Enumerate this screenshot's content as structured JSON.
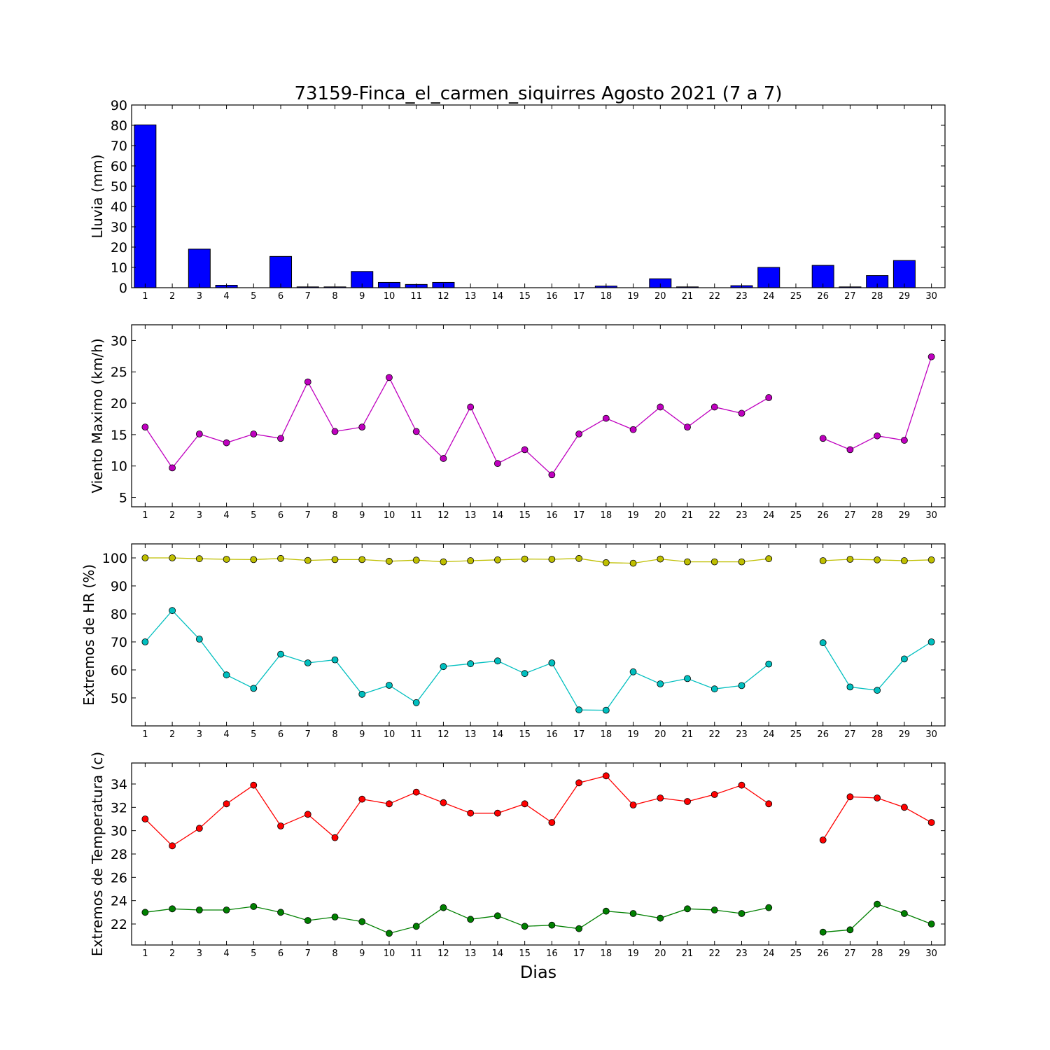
{
  "title": "73159-Finca_el_carmen_siquirres Agosto 2021  (7 a 7)",
  "xlabel": "Dias",
  "colors": {
    "rain": "#0000ff",
    "wind": "#bf00bf",
    "hr_max": "#bfbf00",
    "hr_min": "#00bfbf",
    "temp_max": "#ff0000",
    "temp_min": "#008000"
  },
  "chart_data": [
    {
      "type": "bar",
      "ylabel": "Lluvia (mm)",
      "categories": [
        "1",
        "2",
        "3",
        "4",
        "5",
        "6",
        "7",
        "8",
        "9",
        "10",
        "11",
        "12",
        "13",
        "14",
        "15",
        "16",
        "17",
        "18",
        "19",
        "20",
        "21",
        "22",
        "23",
        "24",
        "25",
        "26",
        "27",
        "28",
        "29",
        "30"
      ],
      "ylim": [
        0,
        90
      ],
      "yticks": [
        0,
        10,
        20,
        30,
        40,
        50,
        60,
        70,
        80,
        90
      ],
      "series": [
        {
          "values": [
            80.2,
            0,
            19,
            1.2,
            0,
            15.4,
            0.4,
            0.4,
            8,
            2.6,
            1.6,
            2.6,
            0,
            0,
            0,
            0,
            0,
            0.8,
            0,
            4.4,
            0.4,
            0,
            1,
            10,
            null,
            11,
            0.4,
            6,
            13.4,
            0
          ]
        }
      ]
    },
    {
      "type": "line",
      "ylabel": "Viento Maximo (km/h)",
      "x": [
        1,
        2,
        3,
        4,
        5,
        6,
        7,
        8,
        9,
        10,
        11,
        12,
        13,
        14,
        15,
        16,
        17,
        18,
        19,
        20,
        21,
        22,
        23,
        24,
        25,
        26,
        27,
        28,
        29,
        30
      ],
      "ylim": [
        3.5,
        32.5
      ],
      "yticks": [
        5,
        10,
        15,
        20,
        25,
        30
      ],
      "series": [
        {
          "values": [
            16.2,
            9.7,
            15.1,
            13.7,
            15.1,
            14.4,
            23.4,
            15.5,
            16.2,
            24.1,
            15.5,
            11.2,
            19.4,
            10.4,
            12.6,
            8.6,
            15.1,
            17.6,
            15.8,
            19.4,
            16.2,
            19.4,
            18.4,
            20.9,
            null,
            14.4,
            12.6,
            14.8,
            14.1,
            27.4
          ]
        }
      ]
    },
    {
      "type": "line",
      "ylabel": "Extremos de HR (%)",
      "x": [
        1,
        2,
        3,
        4,
        5,
        6,
        7,
        8,
        9,
        10,
        11,
        12,
        13,
        14,
        15,
        16,
        17,
        18,
        19,
        20,
        21,
        22,
        23,
        24,
        25,
        26,
        27,
        28,
        29,
        30
      ],
      "ylim": [
        40,
        105
      ],
      "yticks": [
        50,
        60,
        70,
        80,
        90,
        100
      ],
      "series": [
        {
          "values": [
            100,
            100,
            99.7,
            99.5,
            99.4,
            99.8,
            99.1,
            99.4,
            99.4,
            98.8,
            99.2,
            98.6,
            99,
            99.3,
            99.6,
            99.5,
            99.8,
            98.3,
            98.1,
            99.6,
            98.6,
            98.6,
            98.6,
            99.7,
            null,
            99,
            99.5,
            99.3,
            99,
            99.3
          ]
        },
        {
          "values": [
            70,
            81.2,
            71,
            58.2,
            53.4,
            65.6,
            62.5,
            63.6,
            51.3,
            54.5,
            48.3,
            61.2,
            62.2,
            63.2,
            58.7,
            62.5,
            45.7,
            45.6,
            59.3,
            55,
            56.9,
            53.2,
            54.4,
            62.1,
            null,
            69.7,
            53.9,
            52.7,
            63.9,
            70
          ]
        }
      ]
    },
    {
      "type": "line",
      "ylabel": "Extremos de Temperatura (c)",
      "x": [
        1,
        2,
        3,
        4,
        5,
        6,
        7,
        8,
        9,
        10,
        11,
        12,
        13,
        14,
        15,
        16,
        17,
        18,
        19,
        20,
        21,
        22,
        23,
        24,
        25,
        26,
        27,
        28,
        29,
        30
      ],
      "ylim": [
        20.2,
        35.8
      ],
      "yticks": [
        22,
        24,
        26,
        28,
        30,
        32,
        34
      ],
      "series": [
        {
          "values": [
            31,
            28.7,
            30.2,
            32.3,
            33.9,
            30.4,
            31.4,
            29.4,
            32.7,
            32.3,
            33.3,
            32.4,
            31.5,
            31.5,
            32.3,
            30.7,
            34.1,
            34.7,
            32.2,
            32.8,
            32.5,
            33.1,
            33.9,
            32.3,
            null,
            29.2,
            32.9,
            32.8,
            32,
            30.7
          ]
        },
        {
          "values": [
            23,
            23.3,
            23.2,
            23.2,
            23.5,
            23,
            22.3,
            22.6,
            22.2,
            21.2,
            21.8,
            23.4,
            22.4,
            22.7,
            21.8,
            21.9,
            21.6,
            23.1,
            22.9,
            22.5,
            23.3,
            23.2,
            22.9,
            23.4,
            null,
            21.3,
            21.5,
            23.7,
            22.9,
            22
          ]
        }
      ]
    }
  ]
}
